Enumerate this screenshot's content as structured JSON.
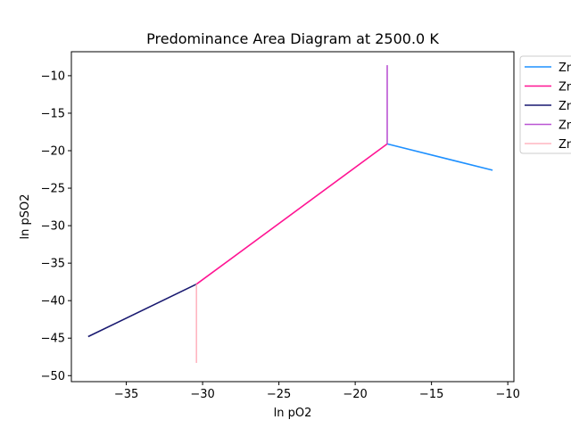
{
  "chart_data": {
    "type": "line",
    "title": "Predominance Area Diagram at 2500.0 K",
    "xlabel": "ln pO2",
    "ylabel": "ln pSO2",
    "xlim": [
      -38.6,
      -9.6
    ],
    "ylim": [
      -50.8,
      -6.8
    ],
    "xticks": [
      -35,
      -30,
      -25,
      -20,
      -15,
      -10
    ],
    "xtick_labels": [
      "−35",
      "−30",
      "−25",
      "−20",
      "−15",
      "−10"
    ],
    "yticks": [
      -10,
      -15,
      -20,
      -25,
      -30,
      -35,
      -40,
      -45,
      -50
    ],
    "ytick_labels": [
      "−10",
      "−15",
      "−20",
      "−25",
      "−30",
      "−35",
      "−40",
      "−45",
      "−50"
    ],
    "grid": false,
    "legend_position": "outside top-right (clipped)",
    "series": [
      {
        "name": "Zn",
        "color": "#1e90ff",
        "x": [
          -17.9,
          -11.0
        ],
        "y": [
          -19.1,
          -22.6
        ]
      },
      {
        "name": "Zn",
        "color": "#ff1493",
        "x": [
          -30.4,
          -17.9
        ],
        "y": [
          -37.8,
          -19.1
        ]
      },
      {
        "name": "Zn",
        "color": "#191970",
        "x": [
          -37.5,
          -30.4
        ],
        "y": [
          -44.8,
          -37.8
        ]
      },
      {
        "name": "Zn",
        "color": "#ba55d3",
        "x": [
          -17.9,
          -17.9
        ],
        "y": [
          -19.1,
          -8.6
        ]
      },
      {
        "name": "Zn",
        "color": "#ffb6c1",
        "x": [
          -30.4,
          -30.4
        ],
        "y": [
          -37.8,
          -48.3
        ]
      }
    ]
  }
}
